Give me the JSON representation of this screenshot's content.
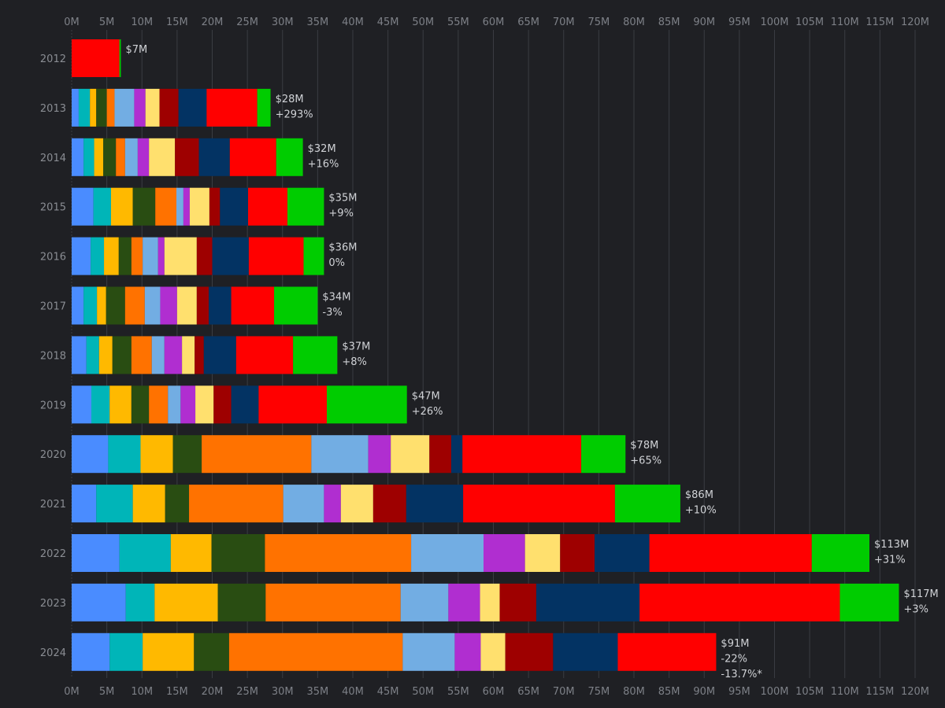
{
  "chart_data": {
    "type": "bar",
    "orientation": "horizontal",
    "stacked": true,
    "title": "",
    "xlabel": "",
    "ylabel": "",
    "xlim": [
      0,
      120
    ],
    "x_ticks": [
      "0M",
      "5M",
      "10M",
      "15M",
      "20M",
      "25M",
      "30M",
      "35M",
      "40M",
      "45M",
      "50M",
      "55M",
      "60M",
      "65M",
      "70M",
      "75M",
      "80M",
      "85M",
      "90M",
      "95M",
      "100M",
      "105M",
      "110M",
      "115M",
      "120M"
    ],
    "x_tick_values": [
      0,
      5,
      10,
      15,
      20,
      25,
      30,
      35,
      40,
      45,
      50,
      55,
      60,
      65,
      70,
      75,
      80,
      85,
      90,
      95,
      100,
      105,
      110,
      115,
      120
    ],
    "grid": true,
    "legend": "none",
    "categories": [
      "2012",
      "2013",
      "2014",
      "2015",
      "2016",
      "2017",
      "2018",
      "2019",
      "2020",
      "2021",
      "2022",
      "2023",
      "2024"
    ],
    "series": [
      {
        "color": "#4a8cff",
        "values": [
          0,
          1.0,
          1.7,
          3.1,
          2.7,
          1.7,
          2.1,
          2.8,
          5.2,
          3.5,
          6.8,
          7.7,
          5.4
        ]
      },
      {
        "color": "#00b5b8",
        "values": [
          0,
          1.6,
          1.5,
          2.5,
          1.9,
          1.9,
          1.8,
          2.6,
          4.6,
          5.2,
          7.3,
          4.1,
          4.7
        ]
      },
      {
        "color": "#ffb900",
        "values": [
          0,
          0.9,
          1.3,
          3.1,
          2.1,
          1.3,
          1.9,
          3.1,
          4.6,
          4.6,
          5.8,
          9.0,
          7.3
        ]
      },
      {
        "color": "#294d12",
        "values": [
          0,
          1.5,
          1.8,
          3.2,
          1.8,
          2.7,
          2.7,
          2.5,
          4.1,
          3.4,
          7.6,
          6.8,
          5.0
        ]
      },
      {
        "color": "#ff7200",
        "values": [
          0,
          1.1,
          1.3,
          3.0,
          1.6,
          2.8,
          2.9,
          2.7,
          15.6,
          13.4,
          20.8,
          19.2,
          24.7
        ]
      },
      {
        "color": "#72ade3",
        "values": [
          0,
          2.8,
          1.8,
          1.0,
          2.2,
          2.2,
          1.8,
          1.8,
          8.1,
          5.8,
          10.3,
          6.8,
          7.4
        ]
      },
      {
        "color": "#b02ed0",
        "values": [
          0,
          1.6,
          1.6,
          0.9,
          0.9,
          2.4,
          2.5,
          2.1,
          3.2,
          2.4,
          5.9,
          4.5,
          3.7
        ]
      },
      {
        "color": "#ffe06e",
        "values": [
          0,
          2.0,
          3.7,
          2.8,
          4.6,
          2.8,
          1.8,
          2.6,
          5.5,
          4.6,
          5.0,
          2.8,
          3.5
        ]
      },
      {
        "color": "#9e0000",
        "values": [
          0,
          2.7,
          3.4,
          1.5,
          2.2,
          1.7,
          1.3,
          2.5,
          3.1,
          4.7,
          4.9,
          5.2,
          6.8
        ]
      },
      {
        "color": "#033363",
        "values": [
          0,
          4.0,
          4.4,
          4.0,
          5.2,
          3.2,
          4.6,
          3.9,
          1.6,
          8.1,
          7.8,
          14.7,
          9.2
        ]
      },
      {
        "color": "#ff0000",
        "values": [
          6.8,
          7.2,
          6.6,
          5.6,
          7.8,
          6.1,
          8.1,
          9.7,
          16.9,
          21.6,
          23.1,
          28.5,
          14.0
        ]
      },
      {
        "color": "#00cc00",
        "values": [
          0.2,
          1.9,
          3.8,
          5.2,
          2.9,
          6.2,
          6.3,
          11.4,
          6.3,
          9.3,
          8.2,
          8.4,
          0
        ]
      }
    ],
    "data_labels": [
      [
        "$7M"
      ],
      [
        "$28M",
        "+293%"
      ],
      [
        "$32M",
        "+16%"
      ],
      [
        "$35M",
        "+9%"
      ],
      [
        "$36M",
        "0%"
      ],
      [
        "$34M",
        "-3%"
      ],
      [
        "$37M",
        "+8%"
      ],
      [
        "$47M",
        "+26%"
      ],
      [
        "$78M",
        "+65%"
      ],
      [
        "$86M",
        "+10%"
      ],
      [
        "$113M",
        "+31%"
      ],
      [
        "$117M",
        "+3%"
      ],
      [
        "$91M",
        "-22%",
        "-13.7%*"
      ]
    ]
  }
}
